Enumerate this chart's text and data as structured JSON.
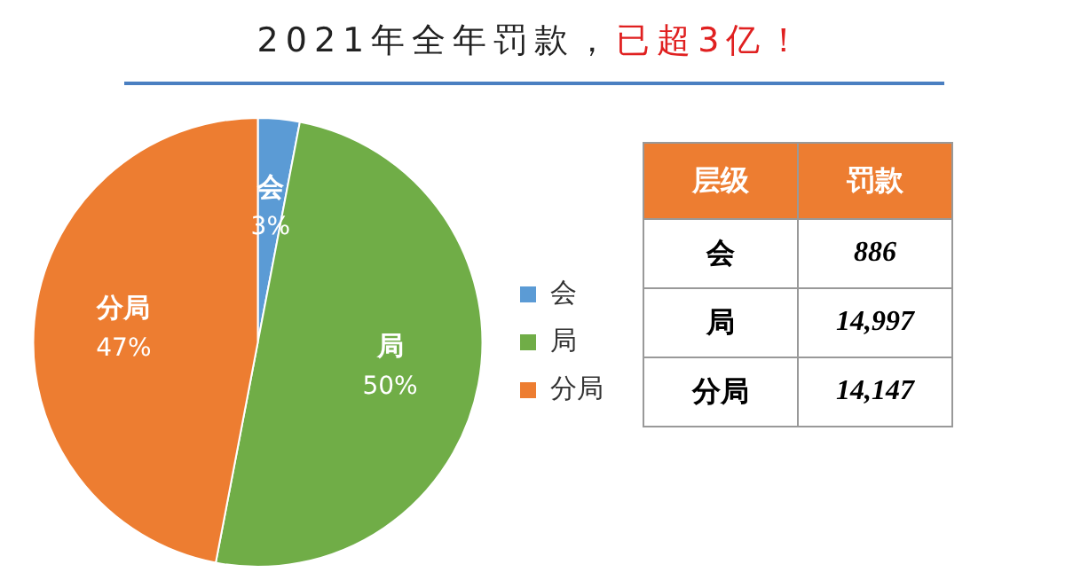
{
  "chart_data": [
    {
      "type": "pie",
      "title": "2021年全年罚款，",
      "subtitle": "已超3亿！",
      "categories": [
        "会",
        "局",
        "分局"
      ],
      "values": [
        3,
        50,
        47
      ],
      "value_labels": [
        "3%",
        "50%",
        "47%"
      ],
      "colors": [
        "#5b9bd5",
        "#70ad47",
        "#ed7d31"
      ],
      "legend": "right"
    },
    {
      "type": "other",
      "xlabel": "层级",
      "ylabel": "罚款",
      "categories": [
        "会",
        "局",
        "分局"
      ],
      "values": [
        886,
        14997,
        14147
      ],
      "value_labels": [
        "886",
        "14,997",
        "14,147"
      ]
    }
  ]
}
